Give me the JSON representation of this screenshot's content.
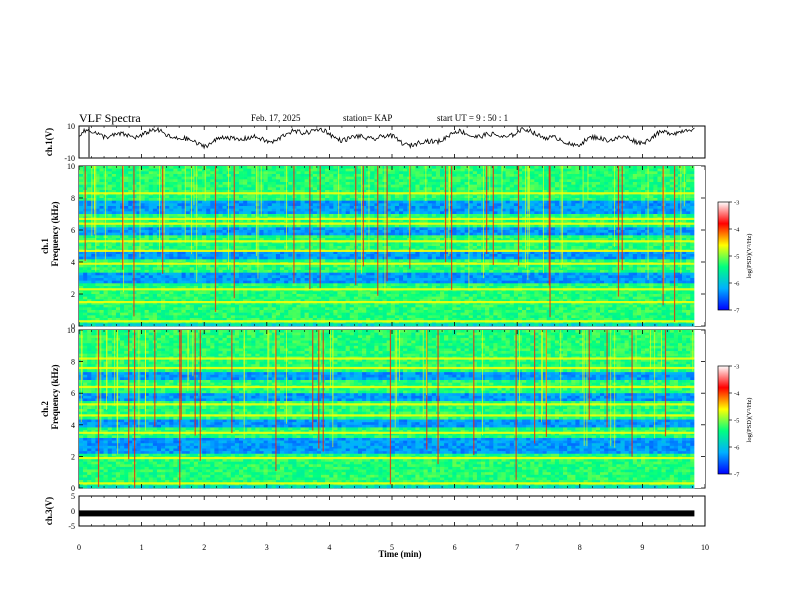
{
  "header": {
    "title": "VLF Spectra",
    "date": "Feb. 17, 2025",
    "station": "station= KAP",
    "start": "start  UT =   9 : 50 : 1"
  },
  "chart_data": {
    "type": "heatmap",
    "xlabel": "Time  (min)",
    "xlim": [
      0,
      10
    ],
    "xticks": [
      "0",
      "1",
      "2",
      "3",
      "4",
      "5",
      "6",
      "7",
      "8",
      "9",
      "10"
    ],
    "data_end_min": 9.83,
    "panels": [
      {
        "id": "ch1-waveform",
        "ylabel": "ch.1(V)",
        "ylim": [
          -10,
          10
        ],
        "yticks": [
          "10",
          "-10"
        ]
      },
      {
        "id": "ch1-spectrogram",
        "ylabel_top": "ch.1",
        "ylabel": "Frequency  (kHz)",
        "ylim": [
          0,
          10
        ],
        "yticks": [
          "0",
          "2",
          "4",
          "6",
          "8",
          "10"
        ],
        "yellow_bands_khz": [
          0.3,
          1.5,
          2.3,
          3.9,
          4.7,
          5.3,
          6.4,
          6.7,
          8.3
        ],
        "blue_bands_khz": [
          [
            2.7,
            3.4
          ],
          [
            4.1,
            4.6
          ],
          [
            5.6,
            6.1
          ],
          [
            7.0,
            7.9
          ]
        ]
      },
      {
        "id": "ch2-spectrogram",
        "ylabel_top": "ch.2",
        "ylabel": "Frequency  (kHz)",
        "ylim": [
          0,
          10
        ],
        "yticks": [
          "0",
          "2",
          "4",
          "6",
          "8",
          "10"
        ],
        "yellow_bands_khz": [
          0.3,
          1.9,
          3.5,
          4.6,
          5.3,
          6.4,
          7.6,
          8.2
        ],
        "blue_bands_khz": [
          [
            2.2,
            3.1
          ],
          [
            3.9,
            4.4
          ],
          [
            5.5,
            6.0
          ],
          [
            6.8,
            7.4
          ]
        ]
      },
      {
        "id": "ch3-waveform",
        "ylabel": "ch.3(V)",
        "ylim": [
          -5,
          5
        ],
        "yticks": [
          "5",
          "0",
          "-5"
        ],
        "level": -0.8
      }
    ],
    "colorbar": {
      "label": "log(PSD)(V²/Hz)",
      "range": [
        -7,
        -3
      ],
      "ticks": [
        "-3",
        "-4",
        "-5",
        "-6",
        "-7"
      ],
      "colors": [
        "#0000ff",
        "#00b0ff",
        "#00ff80",
        "#ffff00",
        "#ff0000",
        "#ffffff"
      ]
    }
  }
}
